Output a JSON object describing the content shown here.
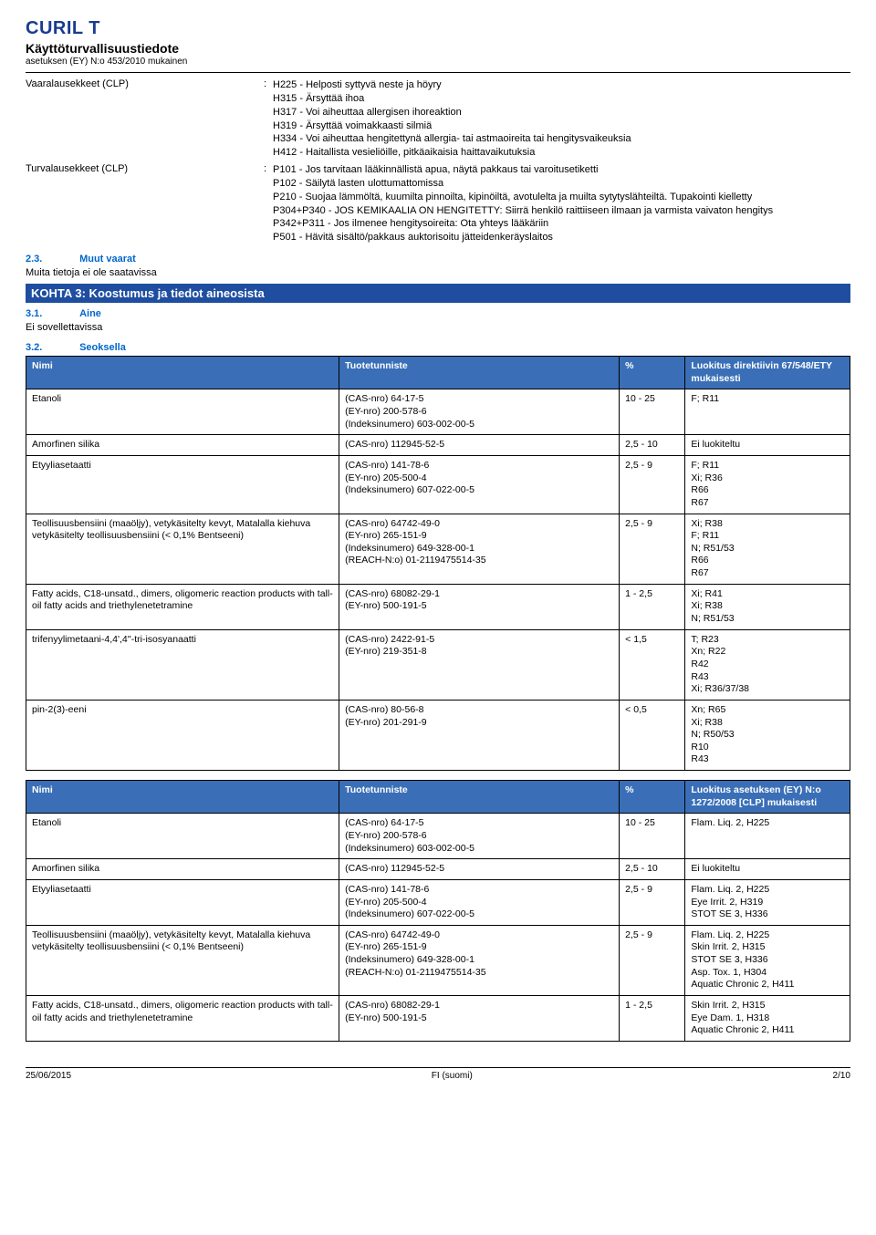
{
  "header": {
    "title": "CURIL T",
    "subtitle1": "Käyttöturvallisuustiedote",
    "subtitle2": "asetuksen (EY) N:o 453/2010 mukainen"
  },
  "hazard": {
    "label": "Vaaralausekkeet (CLP)",
    "text": "H225 - Helposti syttyvä neste ja höyry\nH315 - Ärsyttää ihoa\nH317 - Voi aiheuttaa allergisen ihoreaktion\nH319 - Ärsyttää voimakkaasti silmiä\nH334 - Voi aiheuttaa hengitettynä allergia- tai astmaoireita tai hengitysvaikeuksia\nH412 - Haitallista vesieliöille, pitkäaikaisia haittavaikutuksia"
  },
  "precaution": {
    "label": "Turvalausekkeet (CLP)",
    "text": "P101 - Jos tarvitaan lääkinnällistä apua, näytä pakkaus tai varoitusetiketti\nP102 - Säilytä lasten ulottumattomissa\nP210 - Suojaa lämmöltä, kuumilta pinnoilta, kipinöiltä, avotulelta ja muilta sytytyslähteiltä. Tupakointi kielletty\nP304+P340 - JOS KEMIKAALIA ON HENGITETTY: Siirrä henkilö raittiiseen ilmaan ja varmista vaivaton hengitys\nP342+P311 - Jos ilmenee hengitysoireita: Ota yhteys lääkäriin\nP501 - Hävitä sisältö/pakkaus auktorisoitu jätteidenkeräyslaitos"
  },
  "sections": {
    "s23_num": "2.3.",
    "s23_label": "Muut vaarat",
    "s23_body": "Muita tietoja ei ole saatavissa",
    "kohta3": "KOHTA 3: Koostumus ja tiedot aineosista",
    "s31_num": "3.1.",
    "s31_label": "Aine",
    "s31_body": "Ei sovellettavissa",
    "s32_num": "3.2.",
    "s32_label": "Seoksella"
  },
  "table1": {
    "headers": [
      "Nimi",
      "Tuotetunniste",
      "%",
      "Luokitus direktiivin 67/548/ETY mukaisesti"
    ],
    "rows": [
      [
        "Etanoli",
        "(CAS-nro) 64-17-5\n(EY-nro) 200-578-6\n(Indeksinumero) 603-002-00-5",
        "10 - 25",
        "F; R11"
      ],
      [
        "Amorfinen silika",
        "(CAS-nro) 112945-52-5",
        "2,5 - 10",
        "Ei luokiteltu"
      ],
      [
        "Etyyliasetaatti",
        "(CAS-nro) 141-78-6\n(EY-nro) 205-500-4\n(Indeksinumero) 607-022-00-5",
        "2,5 - 9",
        "F; R11\nXi; R36\nR66\nR67"
      ],
      [
        "Teollisuusbensiini (maaöljy), vetykäsitelty kevyt, Matalalla kiehuva vetykäsitelty teollisuusbensiini (< 0,1% Bentseeni)",
        "(CAS-nro) 64742-49-0\n(EY-nro) 265-151-9\n(Indeksinumero) 649-328-00-1\n(REACH-N:o) 01-2119475514-35",
        "2,5 - 9",
        "Xi; R38\nF; R11\nN; R51/53\nR66\nR67"
      ],
      [
        "Fatty acids, C18-unsatd., dimers, oligomeric reaction products with tall-oil fatty acids and triethylenetetramine",
        "(CAS-nro) 68082-29-1\n(EY-nro) 500-191-5",
        "1 - 2,5",
        "Xi; R41\nXi; R38\nN; R51/53"
      ],
      [
        "trifenyylimetaani-4,4',4''-tri-isosyanaatti",
        "(CAS-nro) 2422-91-5\n(EY-nro) 219-351-8",
        "< 1,5",
        "T; R23\nXn; R22\nR42\nR43\nXi; R36/37/38"
      ],
      [
        "pin-2(3)-eeni",
        "(CAS-nro) 80-56-8\n(EY-nro) 201-291-9",
        "< 0,5",
        "Xn; R65\nXi; R38\nN; R50/53\nR10\nR43"
      ]
    ]
  },
  "table2": {
    "headers": [
      "Nimi",
      "Tuotetunniste",
      "%",
      "Luokitus asetuksen (EY) N:o 1272/2008 [CLP] mukaisesti"
    ],
    "rows": [
      [
        "Etanoli",
        "(CAS-nro) 64-17-5\n(EY-nro) 200-578-6\n(Indeksinumero) 603-002-00-5",
        "10 - 25",
        "Flam. Liq. 2, H225"
      ],
      [
        "Amorfinen silika",
        "(CAS-nro) 112945-52-5",
        "2,5 - 10",
        "Ei luokiteltu"
      ],
      [
        "Etyyliasetaatti",
        "(CAS-nro) 141-78-6\n(EY-nro) 205-500-4\n(Indeksinumero) 607-022-00-5",
        "2,5 - 9",
        "Flam. Liq. 2, H225\nEye Irrit. 2, H319\nSTOT SE 3, H336"
      ],
      [
        "Teollisuusbensiini (maaöljy), vetykäsitelty kevyt, Matalalla kiehuva vetykäsitelty teollisuusbensiini (< 0,1% Bentseeni)",
        "(CAS-nro) 64742-49-0\n(EY-nro) 265-151-9\n(Indeksinumero) 649-328-00-1\n(REACH-N:o) 01-2119475514-35",
        "2,5 - 9",
        "Flam. Liq. 2, H225\nSkin Irrit. 2, H315\nSTOT SE 3, H336\nAsp. Tox. 1, H304\nAquatic Chronic 2, H411"
      ],
      [
        "Fatty acids, C18-unsatd., dimers, oligomeric reaction products with tall-oil fatty acids and triethylenetetramine",
        "(CAS-nro) 68082-29-1\n(EY-nro) 500-191-5",
        "1 - 2,5",
        "Skin Irrit. 2, H315\nEye Dam. 1, H318\nAquatic Chronic 2, H411"
      ]
    ]
  },
  "footer": {
    "left": "25/06/2015",
    "center": "FI (suomi)",
    "right": "2/10"
  },
  "colwidths": [
    "38%",
    "34%",
    "8%",
    "20%"
  ]
}
